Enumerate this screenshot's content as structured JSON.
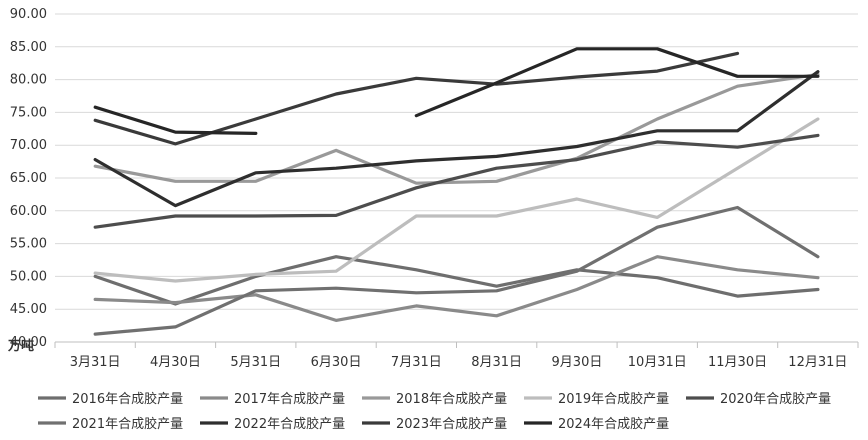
{
  "chart_data": {
    "type": "line",
    "title": "",
    "xlabel": "",
    "ylabel": "万吨",
    "ylim": [
      40,
      90
    ],
    "ytick_step": 5,
    "yticks": [
      "40.00",
      "45.00",
      "50.00",
      "55.00",
      "60.00",
      "65.00",
      "70.00",
      "75.00",
      "80.00",
      "85.00",
      "90.00"
    ],
    "grid": "horizontal",
    "legend_position": "bottom",
    "categories": [
      "3月31日",
      "4月30日",
      "5月31日",
      "6月30日",
      "7月31日",
      "8月31日",
      "9月30日",
      "10月31日",
      "11月30日",
      "12月31日"
    ],
    "series": [
      {
        "name": "2016年合成胶产量",
        "color": "#6e6e6e",
        "values": [
          50.0,
          45.8,
          50.0,
          53.0,
          51.0,
          48.5,
          51.0,
          49.8,
          47.0,
          48.0
        ]
      },
      {
        "name": "2017年合成胶产量",
        "color": "#8a8a8a",
        "values": [
          46.5,
          46.0,
          47.2,
          43.3,
          45.5,
          44.0,
          48.0,
          53.0,
          51.0,
          49.8
        ]
      },
      {
        "name": "2018年合成胶产量",
        "color": "#999999",
        "values": [
          66.8,
          64.5,
          64.5,
          69.2,
          64.2,
          64.5,
          68.0,
          74.0,
          79.0,
          80.8
        ]
      },
      {
        "name": "2019年合成胶产量",
        "color": "#bdbdbd",
        "values": [
          50.5,
          49.3,
          50.3,
          50.8,
          59.2,
          59.2,
          61.8,
          59.0,
          66.5,
          74.0
        ]
      },
      {
        "name": "2020年合成胶产量",
        "color": "#4d4d4d",
        "values": [
          57.5,
          59.2,
          59.2,
          59.3,
          63.5,
          66.5,
          67.8,
          70.5,
          69.7,
          71.5
        ]
      },
      {
        "name": "2021年合成胶产量",
        "color": "#707070",
        "values": [
          41.2,
          42.3,
          47.8,
          48.2,
          47.5,
          47.8,
          50.8,
          57.5,
          60.5,
          53.0
        ]
      },
      {
        "name": "2022年合成胶产量",
        "color": "#2e2e2e",
        "values": [
          67.8,
          60.8,
          65.8,
          66.5,
          67.6,
          68.3,
          69.8,
          72.2,
          72.2,
          81.2
        ]
      },
      {
        "name": "2023年合成胶产量",
        "color": "#3a3a3a",
        "values": [
          73.8,
          70.2,
          74.0,
          77.8,
          80.2,
          79.3,
          80.4,
          81.3,
          84.0,
          null
        ]
      },
      {
        "name": "2024年合成胶产量",
        "color": "#262626",
        "values": [
          75.8,
          72.0,
          71.8,
          null,
          74.5,
          79.5,
          84.7,
          84.7,
          80.5,
          80.5
        ]
      }
    ]
  }
}
